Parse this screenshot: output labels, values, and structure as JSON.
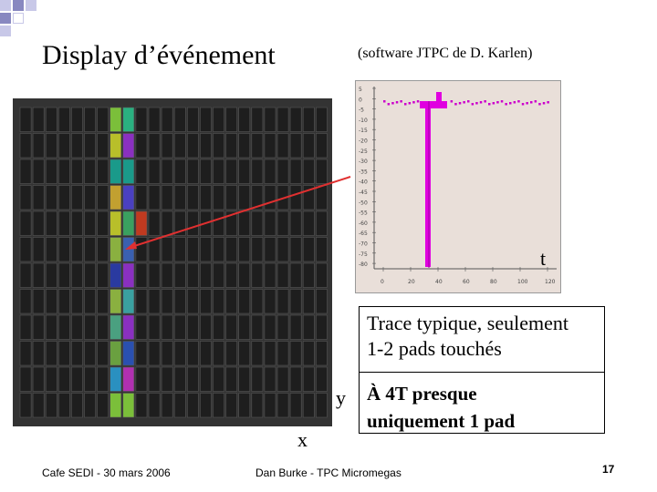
{
  "title": "Display d’événement",
  "subtitle": "(software JTPC de D. Karlen)",
  "waveform": {
    "t_label": "t",
    "y_ticks": [
      "5",
      "0",
      "-5",
      "-10",
      "-15",
      "-20",
      "-25",
      "-30",
      "-35",
      "-40",
      "-45",
      "-50",
      "-55",
      "-60",
      "-65",
      "-70",
      "-75",
      "-80"
    ],
    "x_ticks": [
      "0",
      "20",
      "40",
      "60",
      "80",
      "100",
      "120"
    ]
  },
  "axis_x_label": "x",
  "axis_y_label": "y",
  "trace_text": [
    "Trace typique, seulement",
    "1-2 pads touchés"
  ],
  "fourT_text": [
    "À 4T presque",
    "uniquement 1 pad"
  ],
  "footer_left": "Cafe SEDI - 30 mars 2006",
  "footer_center": "Dan Burke - TPC Micromegas",
  "page_number": "17"
}
